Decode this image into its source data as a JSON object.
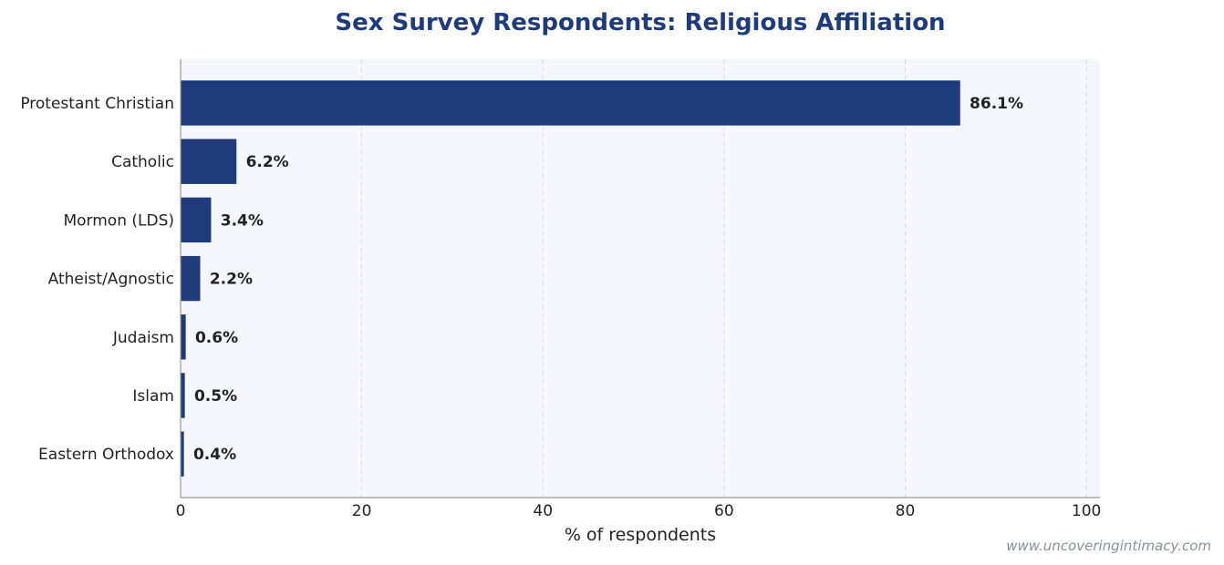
{
  "chart_data": {
    "type": "bar",
    "orientation": "horizontal",
    "title": "Sex Survey Respondents: Religious Affiliation",
    "xlabel": "% of respondents",
    "ylabel": "",
    "categories": [
      "Protestant Christian",
      "Catholic",
      "Mormon (LDS)",
      "Atheist/Agnostic",
      "Judaism",
      "Islam",
      "Eastern Orthodox"
    ],
    "values": [
      86.1,
      6.2,
      3.4,
      2.2,
      0.6,
      0.5,
      0.4
    ],
    "value_labels": [
      "86.1%",
      "6.2%",
      "3.4%",
      "2.2%",
      "0.6%",
      "0.5%",
      "0.4%"
    ],
    "xlim": [
      0,
      101.5
    ],
    "xticks": [
      0,
      20,
      40,
      60,
      80,
      100
    ],
    "grid": "x-dashed",
    "legend": "none"
  },
  "colors": {
    "bar": "#1f3b7a",
    "plot_background": "#f5f7fc",
    "title": "#1f3b7a",
    "grid": "#d5d9e3",
    "axis": "#999999"
  },
  "footer": {
    "watermark": "www.uncoveringintimacy.com"
  }
}
